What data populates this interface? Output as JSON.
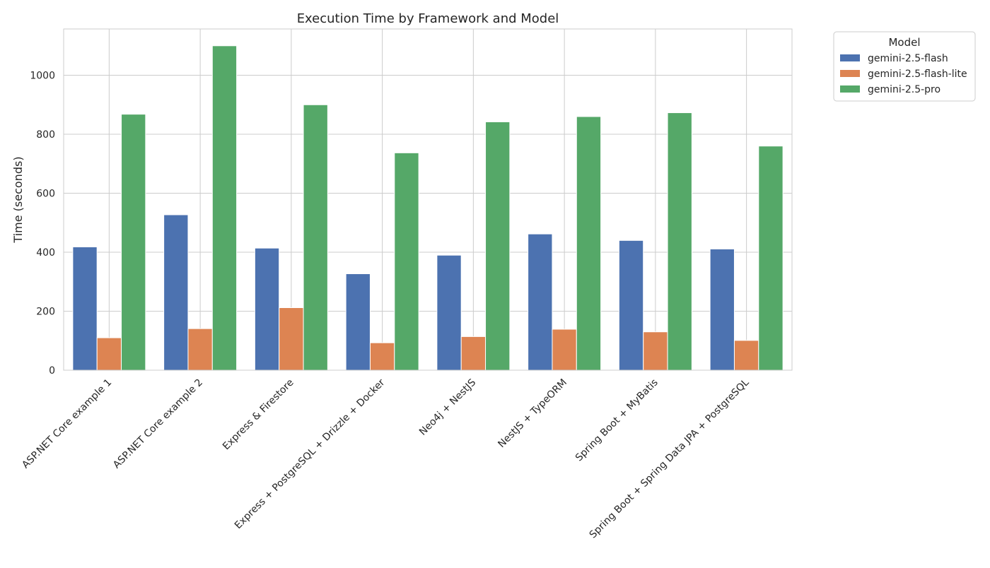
{
  "chart_data": {
    "type": "bar",
    "title": "Execution Time by Framework and Model",
    "xlabel": "",
    "ylabel": "Time (seconds)",
    "ylim": [
      0,
      1157
    ],
    "yticks": [
      0,
      200,
      400,
      600,
      800,
      1000
    ],
    "grid": true,
    "legend": {
      "title": "Model",
      "placement": "outside-top-right"
    },
    "categories": [
      "ASP.NET Core example 1",
      "ASP.NET Core example 2",
      "Express & Firestore",
      "Express + PostgreSQL + Drizzle + Docker",
      "Neo4j + NestJS",
      "NestJS + TypeORM",
      "Spring Boot + MyBatis",
      "Spring Boot + Spring Data JPA + PostgreSQL"
    ],
    "series": [
      {
        "name": "gemini-2.5-flash",
        "color": "#4c72b0",
        "values": [
          418,
          527,
          414,
          327,
          390,
          462,
          440,
          411
        ]
      },
      {
        "name": "gemini-2.5-flash-lite",
        "color": "#dd8452",
        "values": [
          110,
          141,
          212,
          93,
          114,
          139,
          130,
          101
        ]
      },
      {
        "name": "gemini-2.5-pro",
        "color": "#55a868",
        "values": [
          868,
          1100,
          900,
          737,
          842,
          860,
          873,
          760
        ]
      }
    ]
  }
}
